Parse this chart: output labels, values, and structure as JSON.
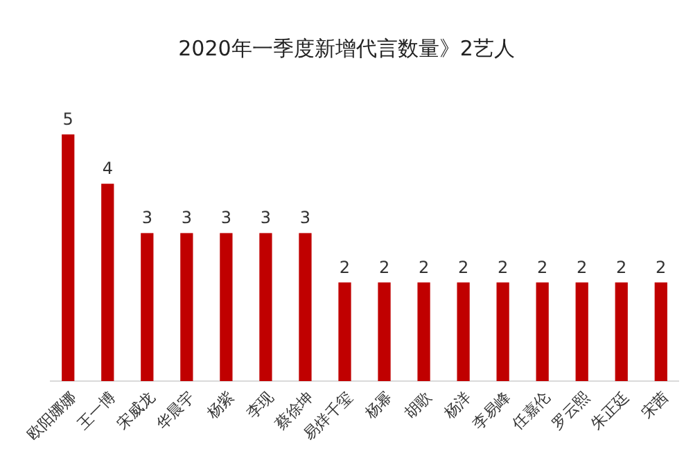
{
  "chart_data": {
    "type": "bar",
    "title": "2020年一季度新增代言数量》2艺人",
    "categories": [
      "欧阳娜娜",
      "王一博",
      "宋威龙",
      "华晨宇",
      "杨紫",
      "李现",
      "蔡徐坤",
      "易烊千玺",
      "杨幂",
      "胡歌",
      "杨洋",
      "李易峰",
      "任嘉伦",
      "罗云熙",
      "朱正廷",
      "宋茜"
    ],
    "values": [
      5,
      4,
      3,
      3,
      3,
      3,
      3,
      2,
      2,
      2,
      2,
      2,
      2,
      2,
      2,
      2
    ],
    "color": "#c00000",
    "data_labels": true
  }
}
